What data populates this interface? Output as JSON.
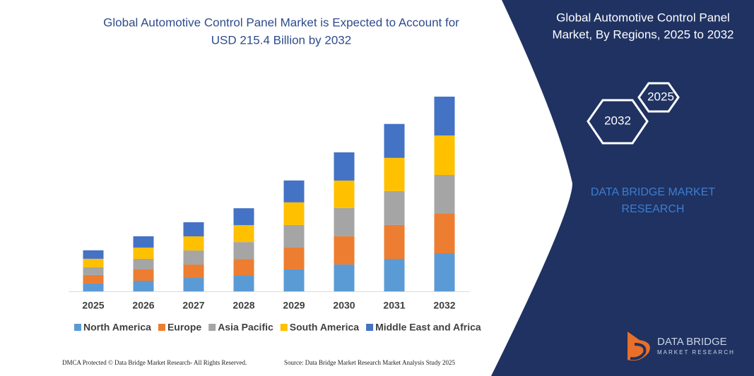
{
  "chart_data": {
    "type": "bar",
    "stacked": true,
    "title": [
      "Global Automotive Control Panel Market is Expected to Account for",
      "USD 215.4 Billion by 2032"
    ],
    "categories": [
      "2025",
      "2026",
      "2027",
      "2028",
      "2029",
      "2030",
      "2031",
      "2032"
    ],
    "series": [
      {
        "name": "North America",
        "color": "#5b9bd5",
        "values": [
          8.6,
          11.7,
          14.8,
          17.9,
          24.2,
          29.7,
          35.9,
          42.1
        ]
      },
      {
        "name": "Europe",
        "color": "#ed7d31",
        "values": [
          9.4,
          12.5,
          14.8,
          17.9,
          24.2,
          31.2,
          37.5,
          43.7
        ]
      },
      {
        "name": "Asia Pacific",
        "color": "#a5a5a5",
        "values": [
          8.6,
          11.7,
          15.6,
          18.7,
          25.0,
          31.2,
          37.5,
          42.9
        ]
      },
      {
        "name": "South America",
        "color": "#ffc000",
        "values": [
          9.4,
          12.5,
          15.6,
          18.7,
          25.0,
          30.4,
          36.7,
          43.7
        ]
      },
      {
        "name": "Middle East and Africa",
        "color": "#4472c4",
        "values": [
          9.4,
          12.5,
          15.6,
          18.7,
          24.2,
          31.2,
          37.5,
          42.9
        ]
      }
    ]
  },
  "panel": {
    "title": [
      "Global Automotive Control Panel",
      "Market, By Regions, 2025 to 2032"
    ],
    "hex_labels": [
      "2025",
      "2032"
    ],
    "brand": [
      "DATA BRIDGE MARKET",
      "RESEARCH"
    ]
  },
  "logo": {
    "name": "DATA BRIDGE",
    "tagline": "MARKET RESEARCH"
  },
  "footer": {
    "left": "DMCA Protected © Data Bridge Market Research- All Rights Reserved.",
    "right": "Source: Data Bridge Market Research Market Analysis Study 2025"
  }
}
